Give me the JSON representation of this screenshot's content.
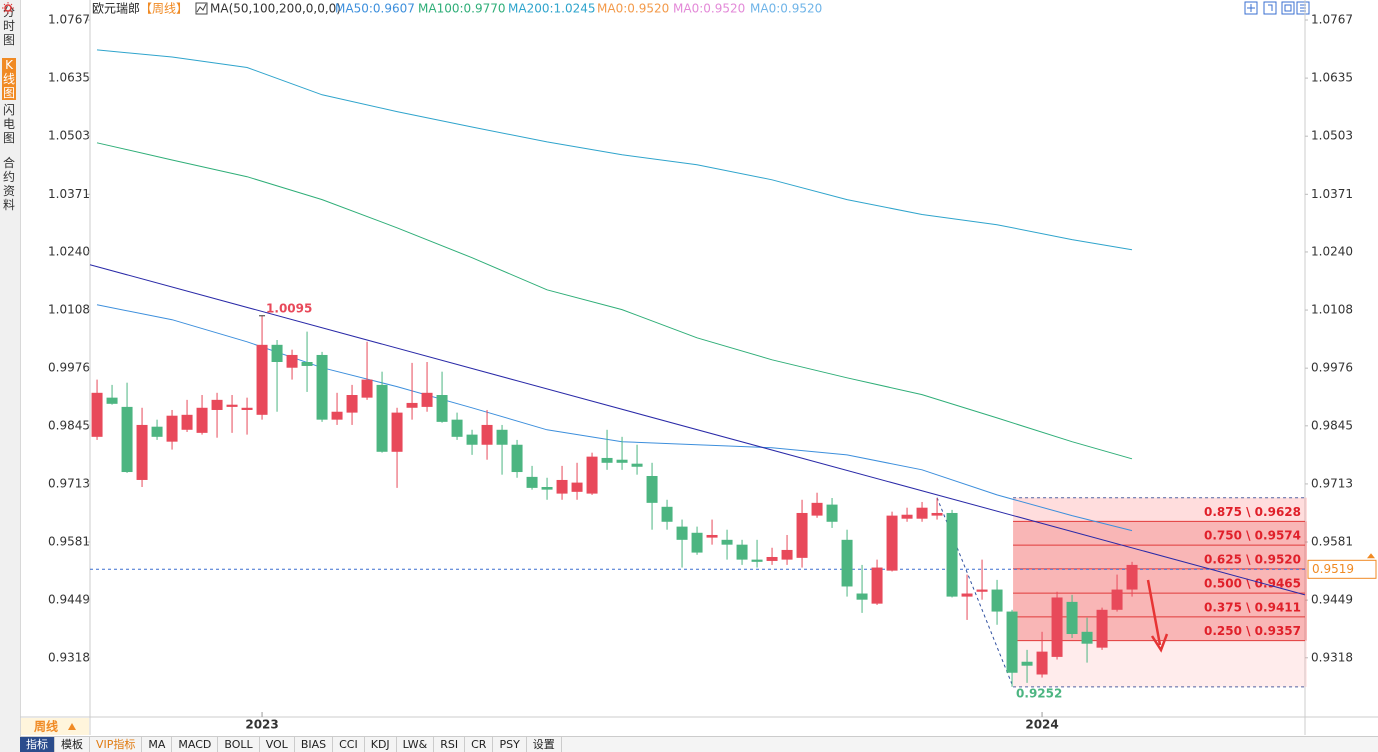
{
  "chart_data": {
    "type": "candlestick",
    "sidebar_tabs": [
      "分时图",
      "K线图",
      "闪电图",
      "合约资料"
    ],
    "active_tab": 1,
    "title": "欧元瑞郎",
    "period": "【周线】",
    "indicator": "MA(50,100,200,0,0,0)",
    "up_color": "#e8495a",
    "down_color": "#4cb581",
    "categories": [
      null,
      null,
      null,
      null,
      null,
      null,
      null,
      null,
      null,
      null,
      null,
      null,
      null,
      null,
      null,
      null,
      null,
      null,
      null,
      null,
      null,
      null,
      null,
      null,
      null,
      null,
      null,
      null,
      null,
      null,
      null,
      null,
      null,
      null,
      null,
      null,
      null,
      null,
      null,
      null,
      null,
      null,
      null,
      null,
      null,
      null,
      null,
      null,
      null,
      null,
      null,
      null,
      null,
      null,
      null,
      null,
      null,
      null,
      null,
      null,
      null,
      null,
      null,
      null,
      null,
      null,
      null,
      null,
      null,
      null
    ],
    "open": [
      0.982,
      0.9909,
      0.9888,
      0.9722,
      0.9843,
      0.9809,
      0.9836,
      0.9829,
      0.9881,
      0.9888,
      0.9881,
      0.987,
      1.0029,
      0.9977,
      0.999,
      1.0006,
      0.9859,
      0.9875,
      0.9909,
      0.9938,
      0.9786,
      0.9886,
      0.9888,
      0.9915,
      0.9859,
      0.9825,
      0.9802,
      0.9836,
      0.9802,
      0.9729,
      0.9706,
      0.9691,
      0.9695,
      0.9691,
      0.9772,
      0.9768,
      0.9759,
      0.9731,
      0.9661,
      0.9616,
      0.9602,
      0.9591,
      0.9586,
      0.9575,
      0.9541,
      0.9538,
      0.9541,
      0.9545,
      0.9641,
      0.9666,
      0.9586,
      0.9464,
      0.9441,
      0.9516,
      0.9634,
      0.9634,
      0.9641,
      0.9647,
      0.9457,
      0.9468,
      0.9473,
      0.9423,
      0.9309,
      0.928,
      0.932,
      0.9445,
      0.9377,
      0.9341,
      0.9427,
      0.9473
    ],
    "high": [
      0.995,
      0.9938,
      0.9943,
      0.9886,
      0.9859,
      0.9881,
      0.9904,
      0.9915,
      0.992,
      0.9915,
      0.9909,
      1.0095,
      1.004,
      1.0018,
      1.0059,
      1.0013,
      0.992,
      0.9938,
      1.0036,
      0.9968,
      0.9886,
      0.9988,
      0.999,
      0.9968,
      0.9875,
      0.9836,
      0.9881,
      0.9847,
      0.9813,
      0.9754,
      0.9727,
      0.9754,
      0.9761,
      0.9784,
      0.9836,
      0.982,
      0.9802,
      0.9761,
      0.9677,
      0.9632,
      0.9616,
      0.9632,
      0.9609,
      0.9586,
      0.9586,
      0.9568,
      0.9597,
      0.9677,
      0.9693,
      0.9681,
      0.9609,
      0.9529,
      0.9541,
      0.965,
      0.9659,
      0.9672,
      0.9681,
      0.9654,
      0.9507,
      0.9541,
      0.9495,
      0.9427,
      0.9336,
      0.9377,
      0.9468,
      0.9461,
      0.9409,
      0.9432,
      0.9507,
      0.9536
    ],
    "low": [
      0.9813,
      0.9893,
      0.9738,
      0.9706,
      0.9813,
      0.9791,
      0.9831,
      0.9825,
      0.9818,
      0.9829,
      0.9825,
      0.9859,
      0.9877,
      0.995,
      0.9922,
      0.9854,
      0.9847,
      0.9847,
      0.9904,
      0.9784,
      0.9704,
      0.9859,
      0.9877,
      0.9852,
      0.9813,
      0.9779,
      0.9768,
      0.9734,
      0.9727,
      0.97,
      0.9677,
      0.9677,
      0.9677,
      0.9688,
      0.9745,
      0.9745,
      0.9734,
      0.9609,
      0.9609,
      0.9523,
      0.9552,
      0.9575,
      0.9541,
      0.9529,
      0.9523,
      0.9529,
      0.9529,
      0.9523,
      0.9636,
      0.9613,
      0.9457,
      0.942,
      0.9438,
      0.9514,
      0.9627,
      0.9627,
      0.9632,
      0.9455,
      0.9404,
      0.945,
      0.9393,
      0.9252,
      0.9261,
      0.9273,
      0.9314,
      0.9363,
      0.9307,
      0.9336,
      0.9423,
      0.9457
    ],
    "close": [
      0.992,
      0.9895,
      0.974,
      0.9847,
      0.982,
      0.9868,
      0.987,
      0.9886,
      0.9904,
      0.9893,
      0.9886,
      1.0029,
      0.999,
      1.0006,
      0.9981,
      0.9859,
      0.9877,
      0.9915,
      0.995,
      0.9786,
      0.9875,
      0.9897,
      0.992,
      0.9854,
      0.982,
      0.9802,
      0.9847,
      0.9802,
      0.974,
      0.9704,
      0.97,
      0.9722,
      0.9716,
      0.9775,
      0.9761,
      0.9761,
      0.9752,
      0.967,
      0.9627,
      0.9586,
      0.9557,
      0.9597,
      0.9575,
      0.9541,
      0.9536,
      0.9547,
      0.9563,
      0.9647,
      0.967,
      0.9627,
      0.948,
      0.945,
      0.9523,
      0.9641,
      0.9643,
      0.9659,
      0.9647,
      0.9457,
      0.9464,
      0.9473,
      0.9423,
      0.9284,
      0.93,
      0.9332,
      0.9455,
      0.9372,
      0.935,
      0.9427,
      0.9473,
      0.9529
    ],
    "ma": [
      {
        "name": "MA50",
        "legend": "MA50:0.9607",
        "color": "#3d8fdc",
        "x": [
          0,
          5,
          10,
          15,
          20,
          25,
          30,
          35,
          40,
          45,
          50,
          55,
          60,
          65,
          69
        ],
        "values": [
          1.012,
          1.0086,
          1.0036,
          0.9977,
          0.9934,
          0.9886,
          0.9836,
          0.9809,
          0.9802,
          0.9795,
          0.9779,
          0.9745,
          0.9688,
          0.9641,
          0.9607
        ]
      },
      {
        "name": "MA100",
        "legend": "MA100:0.9770",
        "color": "#2fae78",
        "x": [
          0,
          5,
          10,
          15,
          20,
          25,
          30,
          35,
          40,
          45,
          50,
          55,
          60,
          65,
          69
        ],
        "values": [
          1.0488,
          1.0449,
          1.0411,
          1.0359,
          1.0295,
          1.0227,
          1.0154,
          1.0109,
          1.0045,
          0.9995,
          0.9954,
          0.9916,
          0.9863,
          0.9809,
          0.977
        ]
      },
      {
        "name": "MA200",
        "legend": "MA200:1.0245",
        "color": "#2fa4cc",
        "x": [
          0,
          5,
          10,
          15,
          20,
          25,
          30,
          35,
          40,
          45,
          50,
          55,
          60,
          65,
          69
        ],
        "values": [
          1.0699,
          1.0683,
          1.0659,
          1.0597,
          1.0559,
          1.0524,
          1.049,
          1.0461,
          1.0438,
          1.0404,
          1.0359,
          1.0325,
          1.0302,
          1.0268,
          1.0245
        ]
      }
    ],
    "extra_legend": [
      {
        "text": "MA0:0.9520",
        "color": "#f39a4a"
      },
      {
        "text": "MA0:0.9520",
        "color": "#e38ad8"
      },
      {
        "text": "MA0:0.9520",
        "color": "#6fb4e8"
      }
    ],
    "xlim": [
      -0.47,
      80.53
    ],
    "ylim": [
      0.9188,
      1.0767
    ],
    "yticks": [
      1.0767,
      1.0635,
      1.0503,
      1.0371,
      {
        "value": 1.024,
        "label": "1.0240"
      },
      1.0108,
      0.9976,
      0.9845,
      0.9713,
      0.9581,
      0.9449,
      0.9318
    ],
    "xticks": [
      {
        "value": 11,
        "label": "2023"
      },
      {
        "value": 63,
        "label": "2024"
      }
    ],
    "high_mark_index": 11,
    "low_mark_index": 61,
    "last_price": 0.9519,
    "trendline": {
      "x": [
        -0.47,
        80.53
      ],
      "y": [
        1.0211,
        0.9461
      ],
      "color": "#2a2aa8"
    },
    "fibonacci": {
      "start_index": 56,
      "levels": [
        {
          "value": 0.9628,
          "label": "0.875 \\ 0.9628"
        },
        {
          "value": 0.9574,
          "label": "0.750 \\ 0.9574"
        },
        {
          "value": 0.952,
          "label": "0.625 \\ 0.9520"
        },
        {
          "value": 0.9465,
          "label": "0.500 \\ 0.9465"
        },
        {
          "value": 0.9411,
          "label": "0.375 \\ 0.9411"
        },
        {
          "value": 0.9357,
          "label": "0.250 \\ 0.9357"
        }
      ]
    },
    "period_button": "周线",
    "toolbar": [
      "指标",
      "模板",
      "VIP指标",
      "MA",
      "MACD",
      "BOLL",
      "VOL",
      "BIAS",
      "CCI",
      "KDJ",
      "LW&",
      "RSI",
      "CR",
      "PSY",
      "设置"
    ]
  }
}
